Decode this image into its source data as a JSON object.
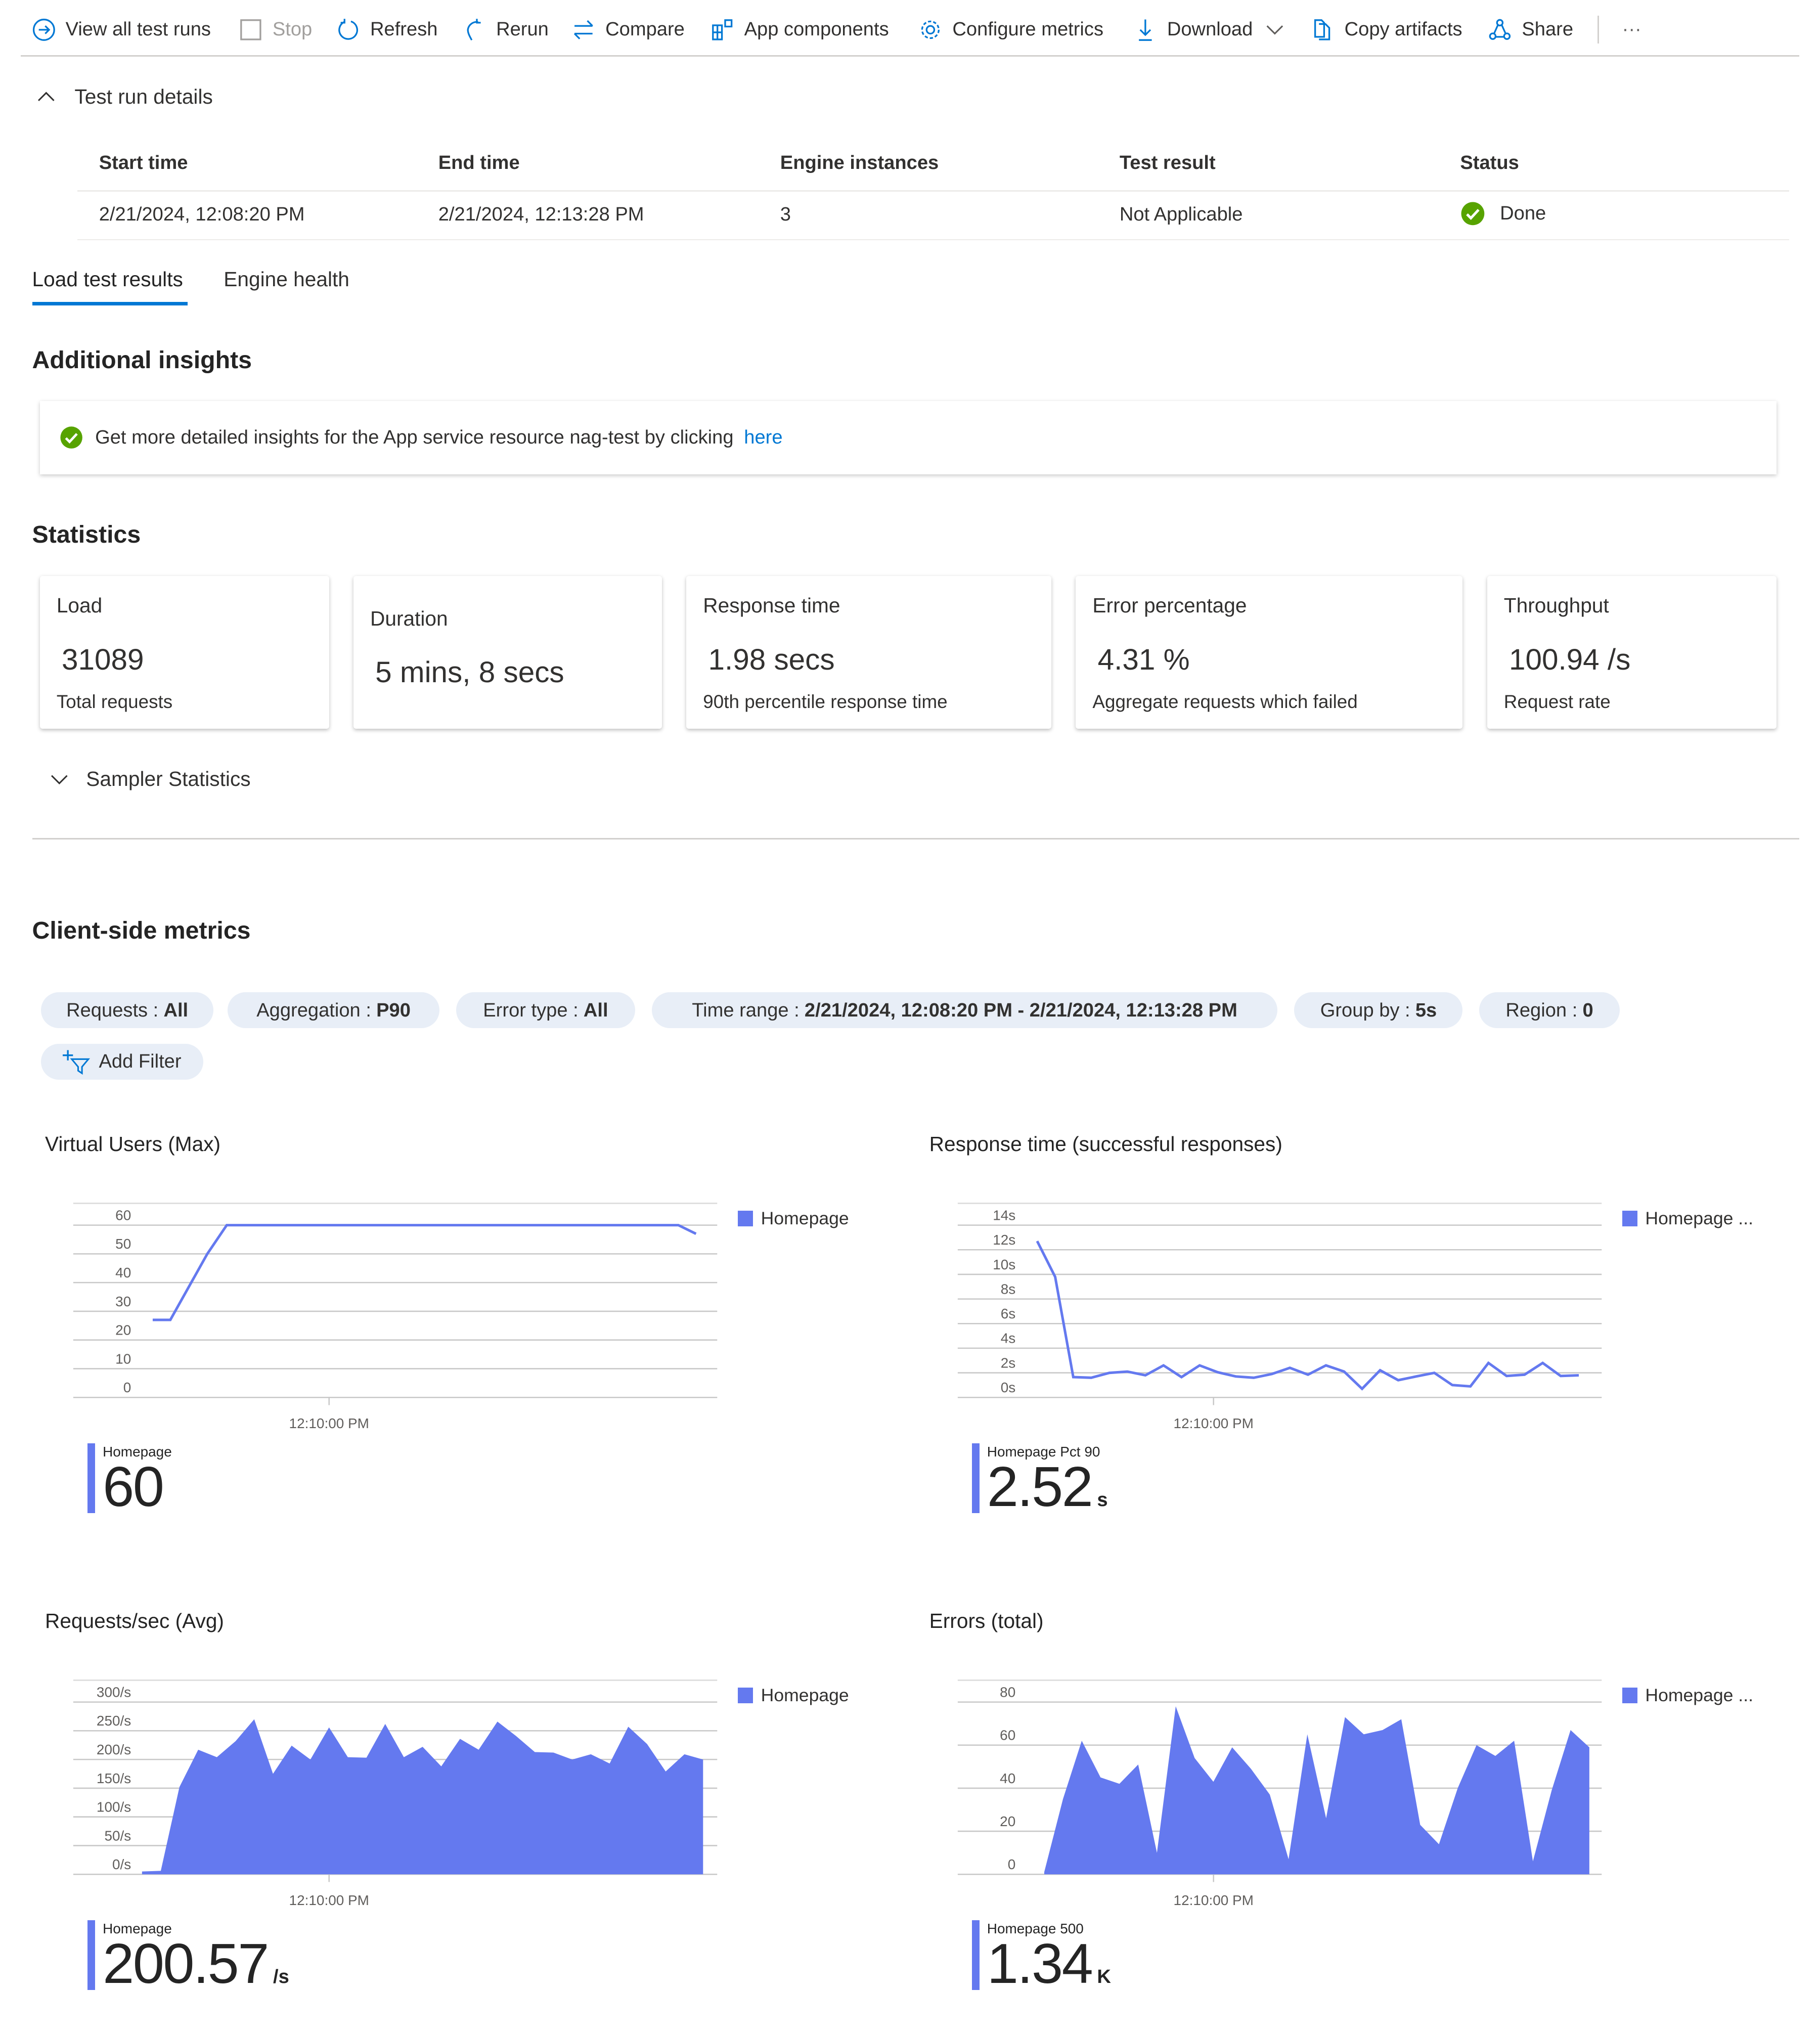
{
  "toolbar": {
    "view_all": "View all test runs",
    "stop": "Stop",
    "refresh": "Refresh",
    "rerun": "Rerun",
    "compare": "Compare",
    "app_components": "App components",
    "configure_metrics": "Configure metrics",
    "download": "Download",
    "copy_artifacts": "Copy artifacts",
    "share": "Share",
    "more": "···"
  },
  "details": {
    "section_title": "Test run details",
    "headers": [
      "Start time",
      "End time",
      "Engine instances",
      "Test result",
      "Status"
    ],
    "row": [
      "2/21/2024, 12:08:20 PM",
      "2/21/2024, 12:13:28 PM",
      "3",
      "Not Applicable",
      "Done"
    ]
  },
  "tabs": [
    {
      "label": "Load test results",
      "active": true
    },
    {
      "label": "Engine health",
      "active": false
    }
  ],
  "insights": {
    "title": "Additional insights",
    "message": "Get more detailed insights for the App service resource nag-test by clicking ",
    "link": "here"
  },
  "statistics": {
    "title": "Statistics",
    "cards": [
      {
        "title": "Load",
        "value": "31089",
        "subtitle": "Total requests"
      },
      {
        "title": "Duration",
        "value": "5 mins, 8 secs",
        "subtitle": ""
      },
      {
        "title": "Response time",
        "value": "1.98 secs",
        "subtitle": "90th percentile response time"
      },
      {
        "title": "Error percentage",
        "value": "4.31 %",
        "subtitle": "Aggregate requests which failed"
      },
      {
        "title": "Throughput",
        "value": "100.94 /s",
        "subtitle": "Request rate"
      }
    ],
    "sampler": "Sampler Statistics"
  },
  "metrics": {
    "title": "Client-side metrics",
    "filters": [
      {
        "label": "Requests :",
        "value": "All"
      },
      {
        "label": "Aggregation :",
        "value": "P90"
      },
      {
        "label": "Error type :",
        "value": "All"
      },
      {
        "label": "Time range :",
        "value": "2/21/2024, 12:08:20 PM - 2/21/2024, 12:13:28 PM"
      },
      {
        "label": "Group by :",
        "value": "5s"
      },
      {
        "label": "Region :",
        "value": "0"
      }
    ],
    "add_filter": "Add Filter"
  },
  "colors": {
    "series": "#6479ef",
    "accent": "#0078d4",
    "success": "#57a300",
    "grid": "#c8c8c8"
  },
  "chart_data": [
    {
      "type": "line",
      "title": "Virtual Users (Max)",
      "yticks": [
        "60",
        "50",
        "40",
        "30",
        "20",
        "10",
        "0"
      ],
      "ylim": [
        0,
        60
      ],
      "xlim": [
        "12:07:35 PM",
        "12:13:40 PM"
      ],
      "xticks": [
        "12:10:00 PM"
      ],
      "legend": "Homepage",
      "legend_position": "right",
      "series": [
        {
          "name": "Homepage",
          "points": [
            [
              "12:08:20",
              27
            ],
            [
              "12:08:30",
              27
            ],
            [
              "12:08:51",
              50
            ],
            [
              "12:09:02",
              60
            ],
            [
              "12:13:18",
              60
            ],
            [
              "12:13:28",
              57
            ]
          ]
        }
      ],
      "summary": {
        "label": "Homepage",
        "value": "60",
        "unit": ""
      }
    },
    {
      "type": "line",
      "title": "Response time (successful responses)",
      "yticks": [
        "14s",
        "12s",
        "10s",
        "8s",
        "6s",
        "4s",
        "2s",
        "0s"
      ],
      "ylim": [
        0,
        14
      ],
      "xlim": [
        "12:07:35 PM",
        "12:13:40 PM"
      ],
      "xticks": [
        "12:10:00 PM"
      ],
      "legend": "Homepage ...",
      "legend_position": "right",
      "series": [
        {
          "name": "Homepage",
          "start": "12:08:20",
          "end": "12:13:27",
          "values": [
            12.7,
            9.8,
            1.65,
            1.6,
            2.0,
            2.1,
            1.8,
            2.6,
            1.65,
            2.6,
            2.05,
            1.7,
            1.6,
            1.9,
            2.4,
            1.85,
            2.6,
            2.1,
            0.7,
            2.2,
            1.4,
            1.7,
            2.0,
            1.0,
            0.9,
            2.8,
            1.75,
            1.85,
            2.8,
            1.75,
            1.8
          ]
        }
      ],
      "summary": {
        "label": "Homepage Pct 90",
        "value": "2.52",
        "unit": "s"
      }
    },
    {
      "type": "area",
      "title": "Requests/sec (Avg)",
      "yticks": [
        "300/s",
        "250/s",
        "200/s",
        "150/s",
        "100/s",
        "50/s",
        "0/s"
      ],
      "ylim": [
        0,
        300
      ],
      "xlim": [
        "12:07:35 PM",
        "12:13:40 PM"
      ],
      "xticks": [
        "12:10:00 PM"
      ],
      "legend": "Homepage",
      "legend_position": "right",
      "series": [
        {
          "name": "Homepage",
          "start": "12:08:14",
          "end": "12:13:32",
          "values": [
            5,
            6,
            152,
            217,
            204,
            232,
            270,
            175,
            224,
            200,
            256,
            204,
            203,
            262,
            204,
            222,
            188,
            236,
            217,
            266,
            241,
            213,
            212,
            200,
            209,
            193,
            257,
            227,
            179,
            209,
            200
          ]
        }
      ],
      "summary": {
        "label": "Homepage",
        "value": "200.57",
        "unit": "/s"
      }
    },
    {
      "type": "area",
      "title": "Errors (total)",
      "yticks": [
        "80",
        "60",
        "40",
        "20",
        "0"
      ],
      "ylim": [
        0,
        80
      ],
      "xlim": [
        "12:07:35 PM",
        "12:13:40 PM"
      ],
      "xticks": [
        "12:10:00 PM"
      ],
      "legend": "Homepage ...",
      "legend_position": "right",
      "series": [
        {
          "name": "Homepage 500",
          "start": "12:08:24",
          "end": "12:13:33",
          "values": [
            1,
            35,
            62,
            45,
            42,
            51,
            10,
            78,
            54,
            43,
            59,
            49,
            37,
            7,
            65,
            26,
            73,
            65,
            67,
            72,
            23,
            14,
            40,
            60,
            55,
            62,
            6,
            39,
            67,
            59
          ]
        }
      ],
      "summary": {
        "label": "Homepage 500",
        "value": "1.34",
        "unit": "K"
      }
    }
  ]
}
